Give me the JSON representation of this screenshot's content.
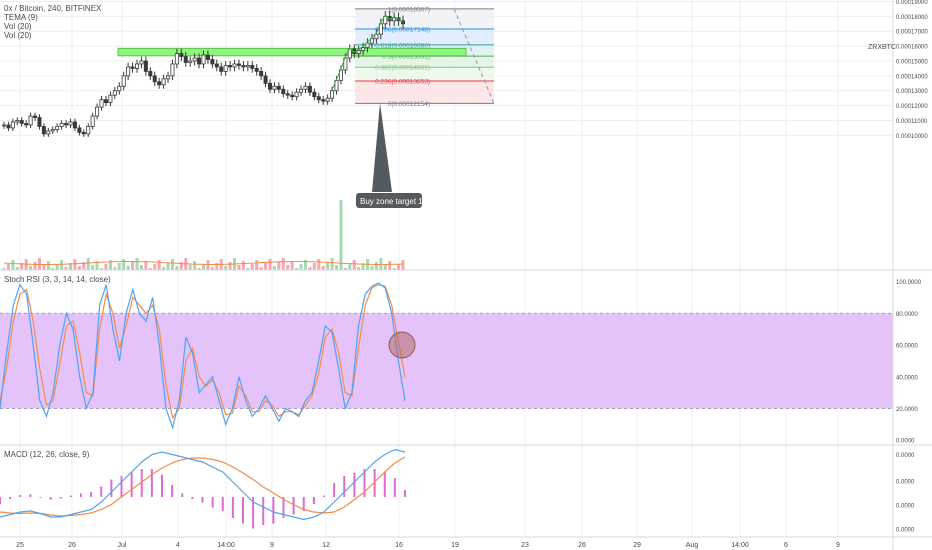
{
  "header": {
    "title": "0x / Bitcoin, 240, BITFINEX",
    "indicators": [
      "TEMA (9)",
      "Vol (20)",
      "Vol (20)"
    ],
    "symbol_label": "ZRXBTC"
  },
  "panes": {
    "stoch_label": "Stoch RSI (3, 3, 14, 14, close)",
    "macd_label": "MACD (12, 26, close, 9)"
  },
  "annotation": {
    "callout": "Buy zone target 1"
  },
  "colors": {
    "up": "#4a4a4a",
    "down": "#4a4a4a",
    "tema": "#3cb043",
    "zone": "#8df57c",
    "stoch_band": "#e4c3fb",
    "k_line": "#4fa3f2",
    "d_line": "#f58b46",
    "macd_hist": "#e06ad0",
    "grid": "#eceff2"
  },
  "chart_data": [
    {
      "type": "candlestick",
      "title": "0x / Bitcoin, 240, BITFINEX",
      "ylim": [
        9.5e-06,
        0.000191
      ],
      "yticks": [
        "0.00019000",
        "0.00018000",
        "0.00017000",
        "0.00016000",
        "0.00015000",
        "0.00014000",
        "0.00013000",
        "0.00012000",
        "0.00011000",
        "0.00010000"
      ],
      "yticks_values": [
        0.00019,
        0.00018,
        0.00017,
        0.00016,
        0.00015,
        0.00014,
        0.00013,
        0.00012,
        0.00011,
        0.0001
      ],
      "xticks": [
        "25",
        "26",
        "Jul",
        "4",
        "14:00",
        "9",
        "12",
        "16",
        "19",
        "23",
        "26",
        "29",
        "Aug",
        "14:00",
        "6",
        "9"
      ],
      "closes": [
        0.000107,
        0.000105,
        0.000109,
        0.00011,
        0.000108,
        0.000107,
        0.000113,
        0.000112,
        0.000106,
        0.000101,
        0.000103,
        0.000104,
        0.000106,
        0.000108,
        0.000107,
        0.000109,
        0.000105,
        0.000102,
        0.000101,
        0.000106,
        0.000113,
        0.000119,
        0.000124,
        0.000122,
        0.000127,
        0.00013,
        0.000133,
        0.00014,
        0.000146,
        0.000145,
        0.000148,
        0.00015,
        0.000143,
        0.00014,
        0.000136,
        0.000134,
        0.000138,
        0.00014,
        0.000148,
        0.000155,
        0.000153,
        0.000149,
        0.00015,
        0.000152,
        0.000148,
        0.000154,
        0.000151,
        0.000148,
        0.000146,
        0.000143,
        0.000147,
        0.000146,
        0.000148,
        0.000147,
        0.000146,
        0.000147,
        0.000145,
        0.000143,
        0.00014,
        0.000135,
        0.000131,
        0.000133,
        0.000131,
        0.000128,
        0.000127,
        0.000126,
        0.000129,
        0.000131,
        0.000133,
        0.000129,
        0.000126,
        0.000124,
        0.000123,
        0.000125,
        0.00013,
        0.000137,
        0.000144,
        0.000152,
        0.000158,
        0.000155,
        0.000157,
        0.000159,
        0.000162,
        0.000165,
        0.000168,
        0.000175,
        0.00018,
        0.000177,
        0.000179,
        0.000177,
        0.000175
      ],
      "vol_spike_index": 76,
      "zone": {
        "top": 0.0001585,
        "bottom": 0.0001535
      },
      "fib_levels": [
        {
          "ratio": "1",
          "value": "0.00018507",
          "label": "1(0.00018507)",
          "y": 0.00018507,
          "color": "#787b86"
        },
        {
          "ratio": "0.786",
          "value": "0.00017148",
          "label": "0.786(0.00017148)",
          "y": 0.00017148,
          "color": "#2196f3"
        },
        {
          "ratio": "0.618",
          "value": "0.00016080",
          "label": "0.618(0.00016080)",
          "y": 0.0001608,
          "color": "#26a69a"
        },
        {
          "ratio": "0.5",
          "value": "0.00015331",
          "label": "0.5(0.00015331)",
          "y": 0.00015331,
          "color": "#4caf50"
        },
        {
          "ratio": "0.382",
          "value": "0.00014581",
          "label": "0.382(0.00014581)",
          "y": 0.00014581,
          "color": "#81c784"
        },
        {
          "ratio": "0.236",
          "value": "0.00013653",
          "label": "0.236(0.00013653)",
          "y": 0.00013653,
          "color": "#f23645"
        },
        {
          "ratio": "0",
          "value": "0.00012154",
          "label": "0(0.00012154)",
          "y": 0.00012154,
          "color": "#787b86"
        }
      ]
    },
    {
      "type": "line",
      "title": "Stoch RSI (3, 3, 14, 14, close)",
      "ylim": [
        -3,
        106
      ],
      "yticks": [
        "100.0000",
        "80.0000",
        "60.0000",
        "40.0000",
        "20.0000",
        "0.0000"
      ],
      "yticks_values": [
        100,
        80,
        60,
        40,
        20,
        0
      ],
      "band": [
        20,
        80
      ],
      "series": [
        {
          "name": "K",
          "values": [
            20,
            55,
            85,
            98,
            92,
            60,
            25,
            15,
            30,
            60,
            80,
            70,
            40,
            20,
            30,
            85,
            98,
            70,
            50,
            80,
            95,
            80,
            75,
            90,
            60,
            20,
            8,
            25,
            65,
            55,
            30,
            35,
            40,
            25,
            10,
            20,
            40,
            25,
            15,
            20,
            28,
            20,
            12,
            20,
            18,
            15,
            25,
            30,
            50,
            72,
            68,
            45,
            20,
            30,
            72,
            92,
            97,
            99,
            96,
            80,
            50,
            25
          ]
        },
        {
          "name": "D",
          "values": [
            25,
            45,
            75,
            92,
            95,
            75,
            45,
            22,
            25,
            48,
            72,
            75,
            55,
            30,
            28,
            70,
            92,
            80,
            58,
            72,
            90,
            85,
            80,
            85,
            70,
            35,
            14,
            20,
            50,
            58,
            40,
            34,
            38,
            30,
            16,
            17,
            34,
            28,
            18,
            18,
            25,
            22,
            15,
            18,
            18,
            16,
            22,
            28,
            42,
            65,
            70,
            55,
            30,
            28,
            58,
            85,
            96,
            98,
            97,
            85,
            62,
            40
          ]
        }
      ]
    },
    {
      "type": "bar",
      "title": "MACD (12, 26, close, 9)",
      "ylim": [
        -8e-07,
        1e-06
      ],
      "yticks": [
        "0.0000",
        "0.0000",
        "0.0000",
        "0.0000"
      ],
      "yticks_values": [
        8.5e-07,
        3.2e-07,
        -1.6e-07,
        -6.4e-07
      ],
      "series": [
        {
          "name": "MACD",
          "values": [
            -4e-07,
            -3.5e-07,
            -3e-07,
            -2.8e-07,
            -3.3e-07,
            -4e-07,
            -4e-07,
            -3.5e-07,
            -3e-07,
            -2.5e-07,
            -1e-07,
            1e-07,
            3e-07,
            5e-07,
            7e-07,
            8.5e-07,
            9e-07,
            8.5e-07,
            8e-07,
            7.5e-07,
            7e-07,
            6e-07,
            5e-07,
            3e-07,
            1e-07,
            -1e-07,
            -2e-07,
            -3e-07,
            -3.5e-07,
            -4e-07,
            -4.5e-07,
            -4e-07,
            -3e-07,
            -1e-07,
            1e-07,
            3e-07,
            5e-07,
            7e-07,
            8.5e-07,
            9.5e-07,
            9e-07
          ]
        },
        {
          "name": "Signal",
          "values": [
            -3e-07,
            -3.2e-07,
            -3.3e-07,
            -3.2e-07,
            -3.3e-07,
            -3.6e-07,
            -3.8e-07,
            -3.7e-07,
            -3.5e-07,
            -3.2e-07,
            -2.5e-07,
            -1.5e-07,
            0.0,
            1.5e-07,
            3e-07,
            4.5e-07,
            5.8e-07,
            6.8e-07,
            7.5e-07,
            7.8e-07,
            7.8e-07,
            7.5e-07,
            7e-07,
            6e-07,
            4.8e-07,
            3.5e-07,
            2e-07,
            8e-08,
            -5e-08,
            -1.5e-07,
            -2.5e-07,
            -3e-07,
            -3.2e-07,
            -3e-07,
            -2e-07,
            -5e-08,
            1e-07,
            3e-07,
            5e-07,
            6.8e-07,
            8e-07
          ]
        }
      ]
    }
  ]
}
